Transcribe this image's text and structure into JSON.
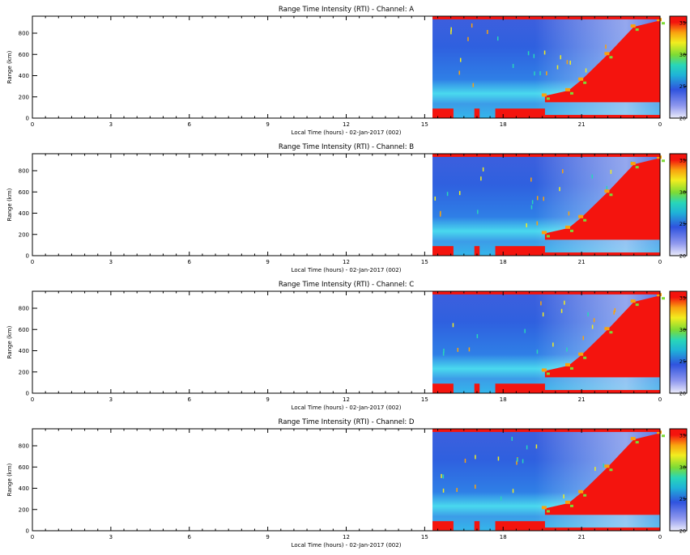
{
  "chart_data": [
    {
      "type": "heatmap",
      "title": "Range Time Intensity (RTI) - Channel: A",
      "xlabel": "Local Time (hours) - 02-Jan-2017 (002)",
      "ylabel": "Range (km)",
      "xlim": [
        0,
        24
      ],
      "ylim": [
        0,
        960
      ],
      "x_ticks": [
        "0",
        "3",
        "6",
        "9",
        "12",
        "15",
        "18",
        "21",
        "0"
      ],
      "y_ticks": [
        "0",
        "200",
        "400",
        "600",
        "800"
      ],
      "colorbar": {
        "range": [
          20,
          36
        ],
        "ticks": [
          "20",
          "25",
          "30",
          "35"
        ]
      },
      "data_start_hour": 15.3,
      "features": {
        "bottom_band_segments_hours": [
          [
            15.3,
            16.1
          ],
          [
            16.9,
            17.1
          ],
          [
            17.7,
            19.6
          ],
          [
            19.6,
            24.0
          ]
        ],
        "top_red_band_km": [
          930,
          960
        ],
        "high_intensity_region": [
          {
            "x": 19.6,
            "y": 210
          },
          {
            "x": 20.5,
            "y": 260
          },
          {
            "x": 21.0,
            "y": 360
          },
          {
            "x": 22.0,
            "y": 600
          },
          {
            "x": 23.0,
            "y": 860
          },
          {
            "x": 24.0,
            "y": 920
          }
        ]
      }
    },
    {
      "type": "heatmap",
      "title": "Range Time Intensity (RTI) - Channel: B",
      "xlabel": "Local Time (hours) - 02-Jan-2017 (002)",
      "ylabel": "Range (km)",
      "xlim": [
        0,
        24
      ],
      "ylim": [
        0,
        960
      ],
      "x_ticks": [
        "0",
        "3",
        "6",
        "9",
        "12",
        "15",
        "18",
        "21",
        "0"
      ],
      "y_ticks": [
        "0",
        "200",
        "400",
        "600",
        "800"
      ],
      "colorbar": {
        "range": [
          20,
          36
        ],
        "ticks": [
          "20",
          "25",
          "30",
          "35"
        ]
      },
      "data_start_hour": 15.3,
      "features": {
        "bottom_band_segments_hours": [
          [
            15.3,
            16.1
          ],
          [
            16.9,
            17.1
          ],
          [
            17.7,
            19.6
          ],
          [
            19.6,
            24.0
          ]
        ],
        "top_red_band_km": [
          930,
          960
        ],
        "high_intensity_region": [
          {
            "x": 19.6,
            "y": 210
          },
          {
            "x": 20.5,
            "y": 260
          },
          {
            "x": 21.0,
            "y": 360
          },
          {
            "x": 22.0,
            "y": 600
          },
          {
            "x": 23.0,
            "y": 860
          },
          {
            "x": 24.0,
            "y": 920
          }
        ]
      }
    },
    {
      "type": "heatmap",
      "title": "Range Time Intensity (RTI) - Channel: C",
      "xlabel": "Local Time (hours) - 02-Jan-2017 (002)",
      "ylabel": "Range (km)",
      "xlim": [
        0,
        24
      ],
      "ylim": [
        0,
        960
      ],
      "x_ticks": [
        "0",
        "3",
        "6",
        "9",
        "12",
        "15",
        "18",
        "21",
        "0"
      ],
      "y_ticks": [
        "0",
        "200",
        "400",
        "600",
        "800"
      ],
      "colorbar": {
        "range": [
          20,
          36
        ],
        "ticks": [
          "20",
          "25",
          "30",
          "35"
        ]
      },
      "data_start_hour": 15.3,
      "features": {
        "bottom_band_segments_hours": [
          [
            15.3,
            16.1
          ],
          [
            16.9,
            17.1
          ],
          [
            17.7,
            19.6
          ],
          [
            19.6,
            24.0
          ]
        ],
        "top_red_band_km": [
          930,
          960
        ],
        "high_intensity_region": [
          {
            "x": 19.6,
            "y": 210
          },
          {
            "x": 20.5,
            "y": 260
          },
          {
            "x": 21.0,
            "y": 360
          },
          {
            "x": 22.0,
            "y": 600
          },
          {
            "x": 23.0,
            "y": 860
          },
          {
            "x": 24.0,
            "y": 920
          }
        ]
      }
    },
    {
      "type": "heatmap",
      "title": "Range Time Intensity (RTI) - Channel: D",
      "xlabel": "Local Time (hours) - 02-Jan-2017 (002)",
      "ylabel": "Range (km)",
      "xlim": [
        0,
        24
      ],
      "ylim": [
        0,
        960
      ],
      "x_ticks": [
        "0",
        "3",
        "6",
        "9",
        "12",
        "15",
        "18",
        "21",
        "0"
      ],
      "y_ticks": [
        "0",
        "200",
        "400",
        "600",
        "800"
      ],
      "colorbar": {
        "range": [
          20,
          36
        ],
        "ticks": [
          "20",
          "25",
          "30",
          "35"
        ]
      },
      "data_start_hour": 15.3,
      "features": {
        "bottom_band_segments_hours": [
          [
            15.3,
            16.1
          ],
          [
            16.9,
            17.1
          ],
          [
            17.7,
            19.6
          ],
          [
            19.6,
            24.0
          ]
        ],
        "top_red_band_km": [
          930,
          960
        ],
        "high_intensity_region": [
          {
            "x": 19.6,
            "y": 210
          },
          {
            "x": 20.5,
            "y": 260
          },
          {
            "x": 21.0,
            "y": 360
          },
          {
            "x": 22.0,
            "y": 600
          },
          {
            "x": 23.0,
            "y": 860
          },
          {
            "x": 24.0,
            "y": 920
          }
        ]
      }
    }
  ]
}
